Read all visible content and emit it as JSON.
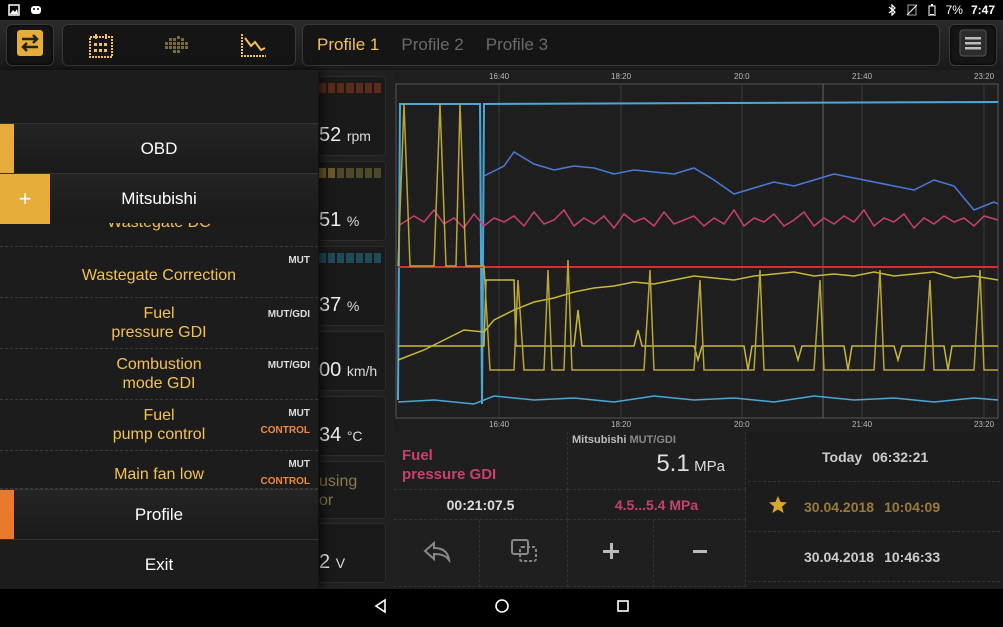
{
  "status": {
    "battery": "7%",
    "time": "7:47"
  },
  "tabs": [
    {
      "label": "Profile 1",
      "active": true
    },
    {
      "label": "Profile 2",
      "active": false
    },
    {
      "label": "Profile 3",
      "active": false
    }
  ],
  "icons": {
    "swap": "swap-icon",
    "calendar": "calendar-icon",
    "grid": "grid-icon",
    "chart": "chart-icon",
    "menu": "menu-icon",
    "undo": "undo-icon",
    "window": "window-icon",
    "plus": "plus-icon",
    "minus": "minus-icon",
    "star": "star-icon"
  },
  "chart_axis": {
    "top_ticks": [
      "16:40",
      "18:20",
      "20:0",
      "21:40",
      "23:20"
    ],
    "bottom_ticks": [
      "16:40",
      "18:20",
      "20:0",
      "21:40",
      "23:20"
    ]
  },
  "gauges": [
    {
      "value": "52",
      "unit": "rpm"
    },
    {
      "value": "51",
      "unit": "%"
    },
    {
      "value": "37",
      "unit": "%"
    },
    {
      "value": "00",
      "unit": "km/h"
    },
    {
      "value": "34",
      "unit": "°C"
    },
    {
      "value": "using",
      "unit": "or"
    },
    {
      "value": "2",
      "unit": "V"
    }
  ],
  "info": {
    "param_name_1": "Fuel",
    "param_name_2": "pressure GDI",
    "source": "Mitsubishi",
    "source_tag": "MUT/GDI",
    "value": "5.1",
    "value_unit": "MPa",
    "duration": "00:21:07.5",
    "range": "4.5...5.4 MPa"
  },
  "history": [
    {
      "label": "Today",
      "time": "06:32:21",
      "starred": false
    },
    {
      "label": "30.04.2018",
      "time": "10:04:09",
      "starred": true
    },
    {
      "label": "30.04.2018",
      "time": "10:46:33",
      "starred": false
    }
  ],
  "drawer": {
    "obd": "OBD",
    "plus": "+",
    "mitsubishi": "Mitsubishi",
    "partial_item": "Wastegate DC",
    "items": [
      {
        "line1": "Wastegate Correction",
        "line2": "",
        "tag1": "MUT",
        "tag2": ""
      },
      {
        "line1": "Fuel",
        "line2": "pressure GDI",
        "tag1": "MUT/GDI",
        "tag2": ""
      },
      {
        "line1": "Combustion",
        "line2": "mode GDI",
        "tag1": "MUT/GDI",
        "tag2": ""
      },
      {
        "line1": "Fuel",
        "line2": "pump control",
        "tag1": "MUT",
        "tag2": "CONTROL"
      },
      {
        "line1": "Main fan low",
        "line2": "",
        "tag1": "MUT",
        "tag2": "CONTROL"
      }
    ],
    "profile": "Profile",
    "exit": "Exit"
  },
  "colors": {
    "accent": "#f3c154",
    "orange": "#e87a2c",
    "pink": "#c9406e",
    "blue": "#4a7bd6",
    "cyan": "#4aa8d8",
    "red": "#d63030",
    "olive": "#c8b83a"
  }
}
